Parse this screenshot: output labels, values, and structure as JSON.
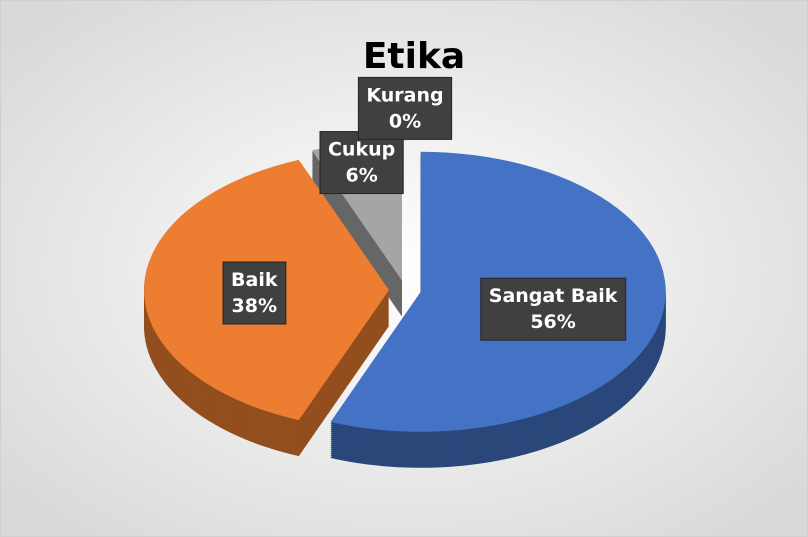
{
  "chart_data": {
    "type": "pie",
    "title": "Etika",
    "categories": [
      "Sangat Baik",
      "Baik",
      "Cukup",
      "Kurang"
    ],
    "values": [
      56,
      38,
      6,
      0
    ],
    "value_labels": [
      "56%",
      "38%",
      "6%",
      "0%"
    ],
    "colors": [
      "#4472c4",
      "#ed7d31",
      "#a5a5a5",
      "#ffc000"
    ]
  }
}
